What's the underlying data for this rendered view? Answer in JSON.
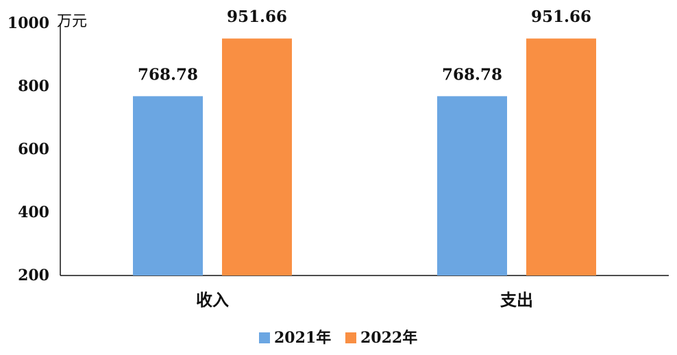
{
  "chart_data": {
    "type": "bar",
    "categories": [
      "收入",
      "支出"
    ],
    "series": [
      {
        "name": "2021年",
        "values": [
          768.78,
          768.78
        ],
        "color": "#6ba6e2"
      },
      {
        "name": "2022年",
        "values": [
          951.66,
          951.66
        ],
        "color": "#f98f43"
      }
    ],
    "data_labels": [
      [
        "768.78",
        "768.78"
      ],
      [
        "951.66",
        "951.66"
      ]
    ],
    "ylabel": "万元",
    "ylim": [
      200,
      1000
    ],
    "yticks": [
      200,
      400,
      600,
      800,
      1000
    ],
    "grid": false,
    "legend_position": "bottom"
  }
}
